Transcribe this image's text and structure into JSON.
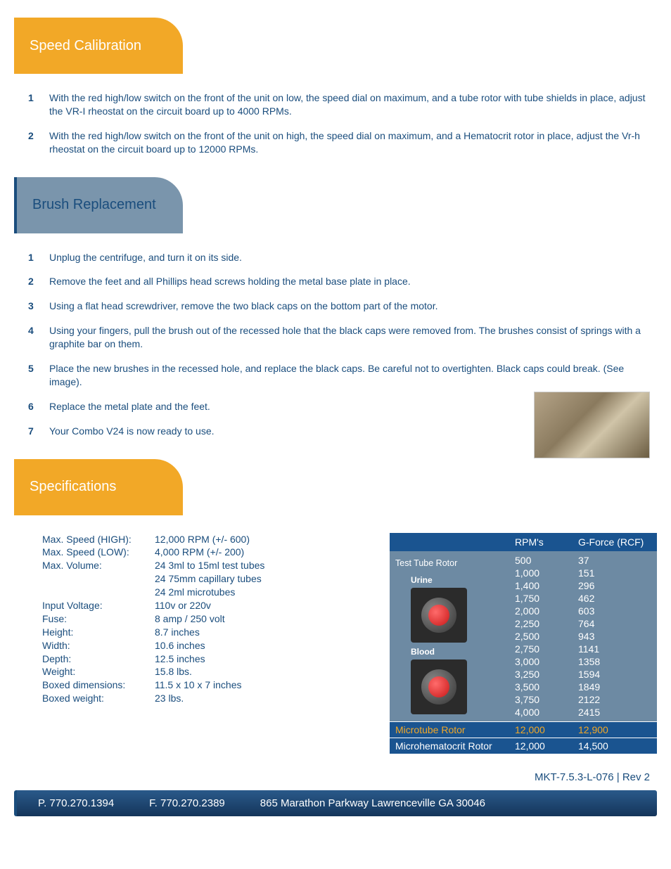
{
  "colors": {
    "gold": "#f2a827",
    "blueGray": "#7a95ac",
    "darkBlue": "#1a4d7d",
    "tableHeader": "#1a5490",
    "tableBody": "#6d8aa3",
    "white": "#ffffff",
    "orange": "#f2a827"
  },
  "sections": {
    "speedCalibration": {
      "title": "Speed Calibration",
      "steps": [
        "With the red high/low switch on the front of the unit on low, the speed dial on maximum, and a tube rotor with tube shields in place, adjust the VR-I rheostat on the circuit board up to 4000 RPMs.",
        "With the red high/low switch on the front of the unit on high, the speed dial on maximum, and a Hematocrit rotor in place, adjust the Vr-h rheostat on the circuit board up to 12000 RPMs."
      ]
    },
    "brushReplacement": {
      "title": "Brush Replacement",
      "steps": [
        "Unplug the centrifuge, and turn it on its side.",
        "Remove the feet and all Phillips head screws holding the metal base plate in place.",
        "Using a flat head screwdriver, remove the two black caps on the bottom part of the motor.",
        "Using your fingers, pull the brush out of the recessed hole that the black caps were removed from. The brushes consist of springs with a graphite bar on them.",
        "Place the new brushes in the recessed hole, and replace the black caps.  Be careful not to overtighten.  Black caps could break. (See image).",
        "Replace the metal plate and the feet.",
        "Your Combo V24 is now ready to use."
      ]
    },
    "specifications": {
      "title": "Specifications",
      "list": [
        {
          "label": "Max. Speed (HIGH):",
          "value": "12,000 RPM (+/- 600)"
        },
        {
          "label": "Max. Speed (LOW):",
          "value": "4,000 RPM (+/- 200)"
        },
        {
          "label": "Max. Volume:",
          "value": "24   3ml to 15ml test tubes"
        },
        {
          "label": "",
          "value": "24   75mm capillary tubes"
        },
        {
          "label": "",
          "value": "24   2ml microtubes"
        },
        {
          "label": "Input Voltage:",
          "value": "110v or 220v"
        },
        {
          "label": "Fuse:",
          "value": "8 amp / 250 volt"
        },
        {
          "label": "Height:",
          "value": "8.7 inches"
        },
        {
          "label": "Width:",
          "value": "10.6 inches"
        },
        {
          "label": "Depth:",
          "value": "12.5 inches"
        },
        {
          "label": "Weight:",
          "value": "15.8 lbs."
        },
        {
          "label": "Boxed dimensions:",
          "value": "11.5 x 10 x 7 inches"
        },
        {
          "label": "Boxed weight:",
          "value": "23 lbs."
        }
      ],
      "rpmTable": {
        "headers": [
          "",
          "RPM's",
          "G-Force (RCF)"
        ],
        "testTubeLabel": "Test Tube Rotor",
        "urineLabel": "Urine",
        "bloodLabel": "Blood",
        "rows": [
          {
            "rpm": "500",
            "g": "37"
          },
          {
            "rpm": "1,000",
            "g": "151"
          },
          {
            "rpm": "1,400",
            "g": "296"
          },
          {
            "rpm": "1,750",
            "g": "462"
          },
          {
            "rpm": "2,000",
            "g": "603"
          },
          {
            "rpm": "2,250",
            "g": "764"
          },
          {
            "rpm": "2,500",
            "g": "943"
          },
          {
            "rpm": "2,750",
            "g": "1141"
          },
          {
            "rpm": "3,000",
            "g": "1358"
          },
          {
            "rpm": "3,250",
            "g": "1594"
          },
          {
            "rpm": "3,500",
            "g": "1849"
          },
          {
            "rpm": "3,750",
            "g": "2122"
          },
          {
            "rpm": "4,000",
            "g": "2415"
          }
        ],
        "microtubeRow": {
          "label": "Microtube Rotor",
          "rpm": "12,000",
          "g": "12,900"
        },
        "microhematRow": {
          "label": "Microhematocrit Rotor",
          "rpm": "12,000",
          "g": "14,500"
        }
      }
    }
  },
  "docId": "MKT-7.5.3-L-076 | Rev 2",
  "footer": {
    "phone": "P. 770.270.1394",
    "fax": "F. 770.270.2389",
    "address": "865 Marathon Parkway Lawrenceville GA 30046"
  }
}
